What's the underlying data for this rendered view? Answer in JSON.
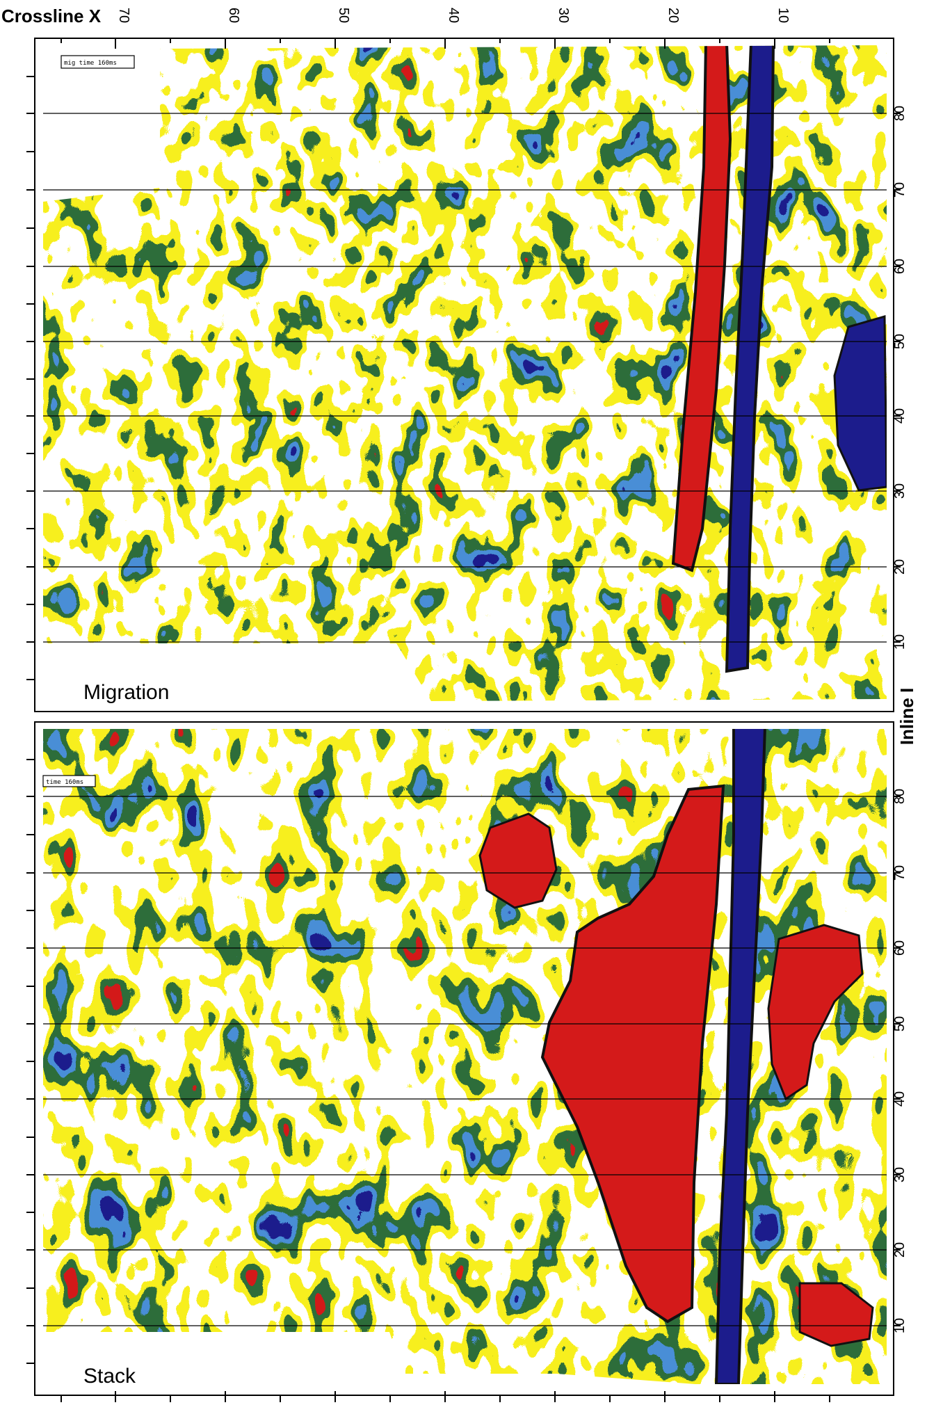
{
  "figure": {
    "x_axis_title": "Crossline X",
    "y_axis_title": "Inline I",
    "x_ticks": [
      "70",
      "60",
      "50",
      "40",
      "30",
      "20",
      "10"
    ],
    "y_ticks": [
      "80",
      "70",
      "60",
      "50",
      "40",
      "30",
      "20",
      "10"
    ]
  },
  "panels": [
    {
      "label": "Migration",
      "tag": "mig time 160ms"
    },
    {
      "label": "Stack",
      "tag": "time 160ms"
    }
  ],
  "colors": {
    "positive_strong": "#d41a1a",
    "negative_strong": "#1c1c8c",
    "green": "#2f6e3a",
    "light_blue": "#4a8fd6",
    "yellow": "#f7ef1f",
    "background": "#ffffff"
  },
  "chart_data": {
    "type": "heatmap",
    "description_axes": {
      "x": "Crossline X (decreasing left to right)",
      "y": "Inline I (increasing upward)"
    },
    "xlim": [
      75,
      1
    ],
    "ylim": [
      1,
      89
    ],
    "panels": [
      "Migration",
      "Stack"
    ],
    "colormap": [
      "#1c1c8c",
      "#4a8fd6",
      "#2f6e3a",
      "#f7ef1f",
      "#ffffff",
      "#f7ef1f",
      "#2f6e3a",
      "#d41a1a"
    ]
  }
}
